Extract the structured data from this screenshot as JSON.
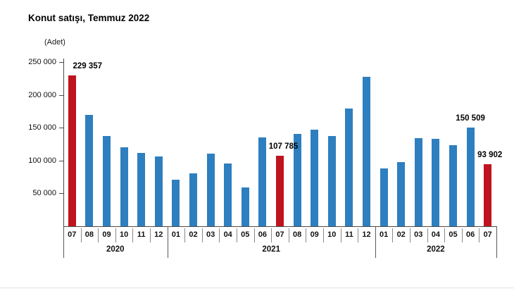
{
  "chart": {
    "title": "Konut satışı, Temmuz 2022",
    "unit_label": "(Adet)"
  },
  "chart_data": {
    "type": "bar",
    "title": "Konut satışı, Temmuz 2022",
    "xlabel": "",
    "ylabel": "(Adet)",
    "ylim": [
      0,
      250000
    ],
    "grid": false,
    "legend": "none",
    "bar_color": "#2e7fbf",
    "highlight_color": "#bf141f",
    "highlight_indexes": [
      0,
      12,
      24
    ],
    "yticks": [
      {
        "value": 250000,
        "label": "250 000"
      },
      {
        "value": 200000,
        "label": "200 000"
      },
      {
        "value": 150000,
        "label": "150 000"
      },
      {
        "value": 100000,
        "label": "100 000"
      },
      {
        "value": 50000,
        "label": "50 000"
      }
    ],
    "categories": [
      "07",
      "08",
      "09",
      "10",
      "11",
      "12",
      "01",
      "02",
      "03",
      "04",
      "05",
      "06",
      "07",
      "08",
      "09",
      "10",
      "11",
      "12",
      "01",
      "02",
      "03",
      "04",
      "05",
      "06",
      "07"
    ],
    "year_groups": [
      {
        "label": "2020",
        "months": 6
      },
      {
        "label": "2021",
        "months": 12
      },
      {
        "label": "2022",
        "months": 7
      }
    ],
    "values": [
      229357,
      170000,
      137000,
      120000,
      112000,
      106000,
      71000,
      81000,
      111000,
      96000,
      59000,
      135000,
      107785,
      141000,
      147000,
      137000,
      179000,
      227000,
      88000,
      98000,
      134000,
      133000,
      123000,
      150509,
      93902
    ],
    "data_labels": [
      {
        "index": 0,
        "text": "229 357"
      },
      {
        "index": 12,
        "text": "107 785"
      },
      {
        "index": 23,
        "text": "150 509"
      },
      {
        "index": 24,
        "text": "93 902"
      }
    ]
  }
}
